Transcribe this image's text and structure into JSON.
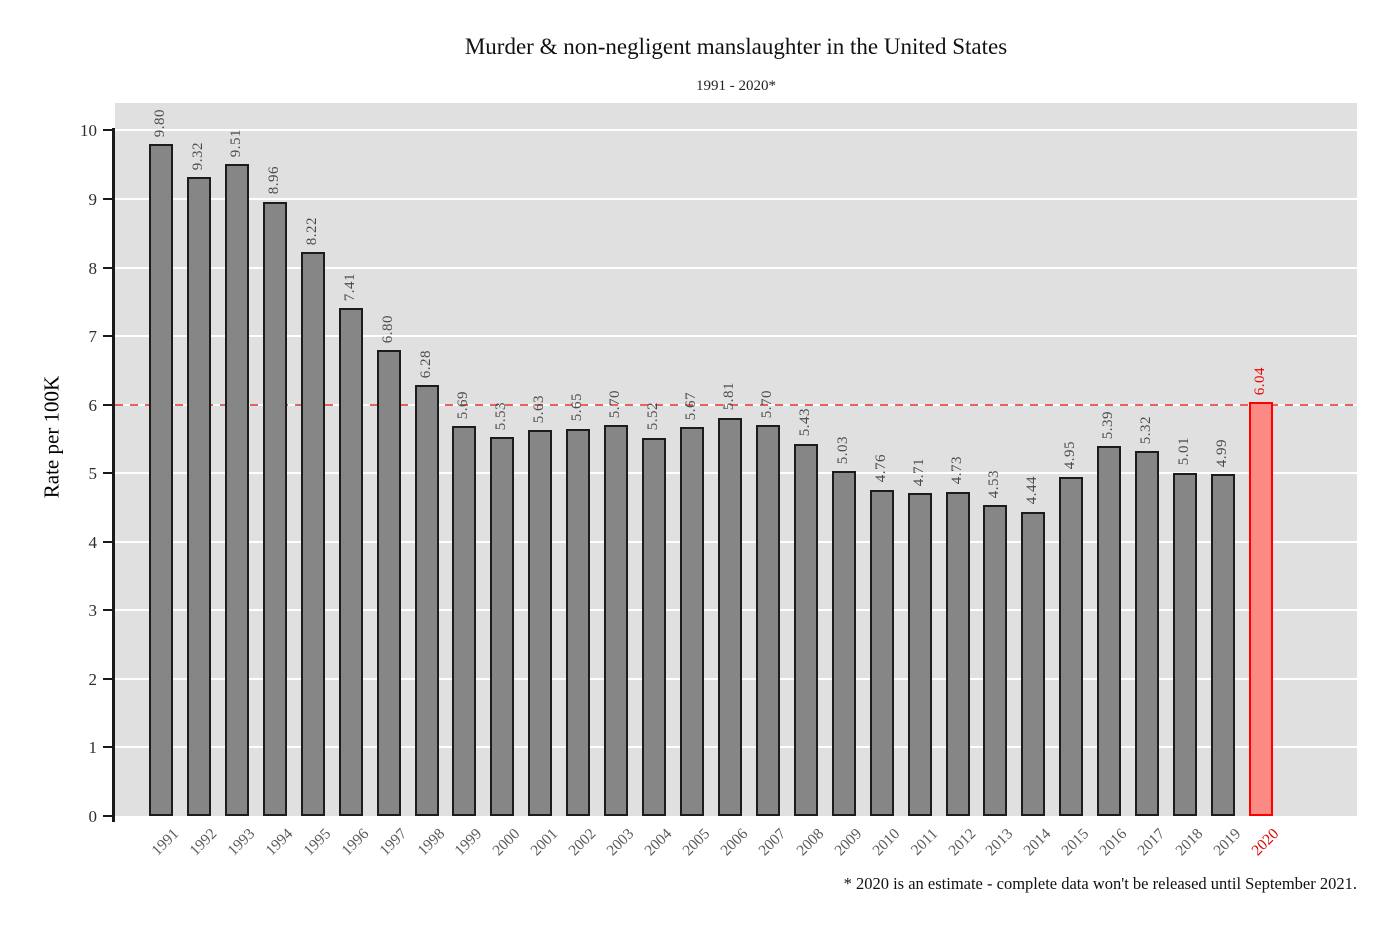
{
  "title": "Murder & non-negligent manslaughter in the United States",
  "subtitle": "1991 - 2020*",
  "footnote": "* 2020 is an estimate - complete data won't be released until September 2021.",
  "chart_data": {
    "type": "bar",
    "title": "Murder & non-negligent manslaughter in the United States",
    "subtitle": "1991 - 2020*",
    "xlabel": "",
    "ylabel": "Rate per 100K",
    "categories": [
      "1991",
      "1992",
      "1993",
      "1994",
      "1995",
      "1996",
      "1997",
      "1998",
      "1999",
      "2000",
      "2001",
      "2002",
      "2003",
      "2004",
      "2005",
      "2006",
      "2007",
      "2008",
      "2009",
      "2010",
      "2011",
      "2012",
      "2013",
      "2014",
      "2015",
      "2016",
      "2017",
      "2018",
      "2019",
      "2020"
    ],
    "values": [
      9.8,
      9.32,
      9.51,
      8.96,
      8.22,
      7.41,
      6.8,
      6.28,
      5.69,
      5.53,
      5.63,
      5.65,
      5.7,
      5.52,
      5.67,
      5.81,
      5.7,
      5.43,
      5.03,
      4.76,
      4.71,
      4.73,
      4.53,
      4.44,
      4.95,
      5.39,
      5.32,
      5.01,
      4.99,
      6.04
    ],
    "bar_value_labels": [
      "9.80",
      "9.32",
      "9.51",
      "8.96",
      "8.22",
      "7.41",
      "6.80",
      "6.28",
      "5.69",
      "5.53",
      "5.63",
      "5.65",
      "5.70",
      "5.52",
      "5.67",
      "5.81",
      "5.70",
      "5.43",
      "5.03",
      "4.76",
      "4.71",
      "4.73",
      "4.53",
      "4.44",
      "4.95",
      "5.39",
      "5.32",
      "5.01",
      "4.99",
      "6.04"
    ],
    "highlight_category": "2020",
    "ylim": [
      0,
      10.4
    ],
    "yticks": [
      0,
      1,
      2,
      3,
      4,
      5,
      6,
      7,
      8,
      9,
      10
    ],
    "grid": "white horizontal major gridlines on gray panel",
    "legend": "none",
    "reference_line": {
      "y": 6,
      "style": "dashed",
      "color": "#e4625f"
    },
    "colors": {
      "panel_bg": "#e0e0e0",
      "grid": "#ffffff",
      "bar_fill": "#868686",
      "bar_border": "#1c1c1c",
      "highlight_fill": "#fb8a85",
      "highlight_border": "#ff0000",
      "value_label": "#4a4a4a",
      "highlight_label": "#ee0000",
      "x_tick_label": "#595959",
      "axis": "#1a1a1a"
    }
  }
}
